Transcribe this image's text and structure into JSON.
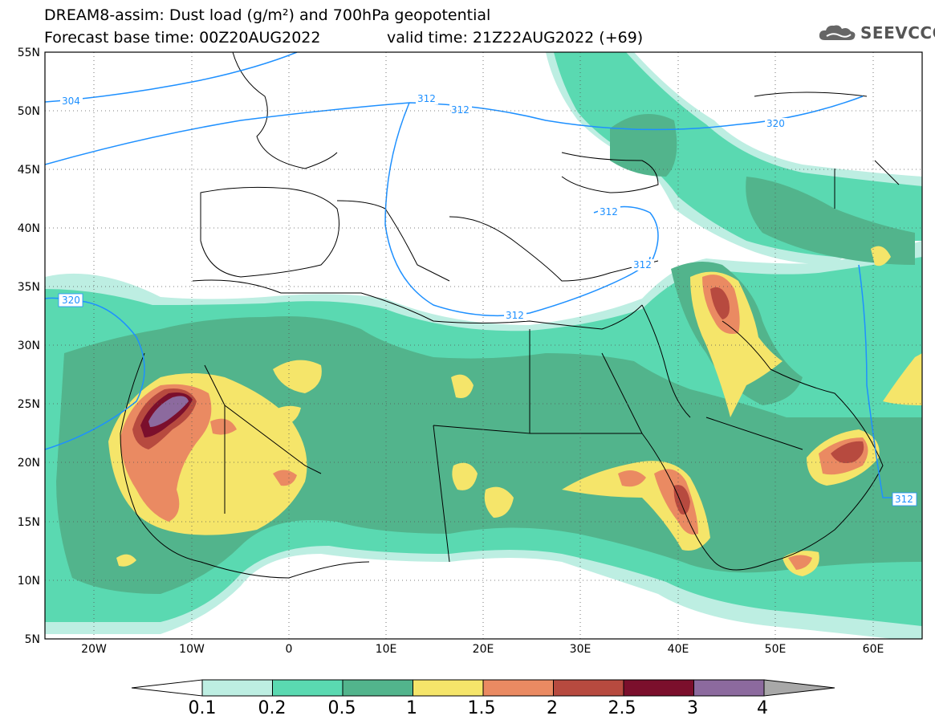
{
  "title": {
    "line1": "DREAM8-assim: Dust load (g/m²) and 700hPa geopotential",
    "line2": "Forecast base time: 00Z20AUG2022",
    "valid": "valid time: 21Z22AUG2022 (+69)"
  },
  "logo": {
    "text": "SEEVCCC",
    "icon": "cloud-icon"
  },
  "axes": {
    "lon_labels": [
      "20W",
      "10W",
      "0",
      "10E",
      "20E",
      "30E",
      "40E",
      "50E",
      "60E"
    ],
    "lat_labels": [
      "55N",
      "50N",
      "45N",
      "40N",
      "35N",
      "30N",
      "25N",
      "20N",
      "15N",
      "10N",
      "5N"
    ]
  },
  "contour_labels": [
    "304",
    "312",
    "312",
    "320",
    "320",
    "312",
    "312",
    "312",
    "312"
  ],
  "colorbar": {
    "labels": [
      "0.1",
      "0.2",
      "0.5",
      "1",
      "1.5",
      "2",
      "2.5",
      "3",
      "4"
    ],
    "colors": [
      "#ffffff",
      "#bdeee2",
      "#5ad9b1",
      "#52b48c",
      "#f5e56a",
      "#ea8a62",
      "#b74a3f",
      "#7b0f2c",
      "#8c6a9e",
      "#a8a8a8"
    ]
  }
}
